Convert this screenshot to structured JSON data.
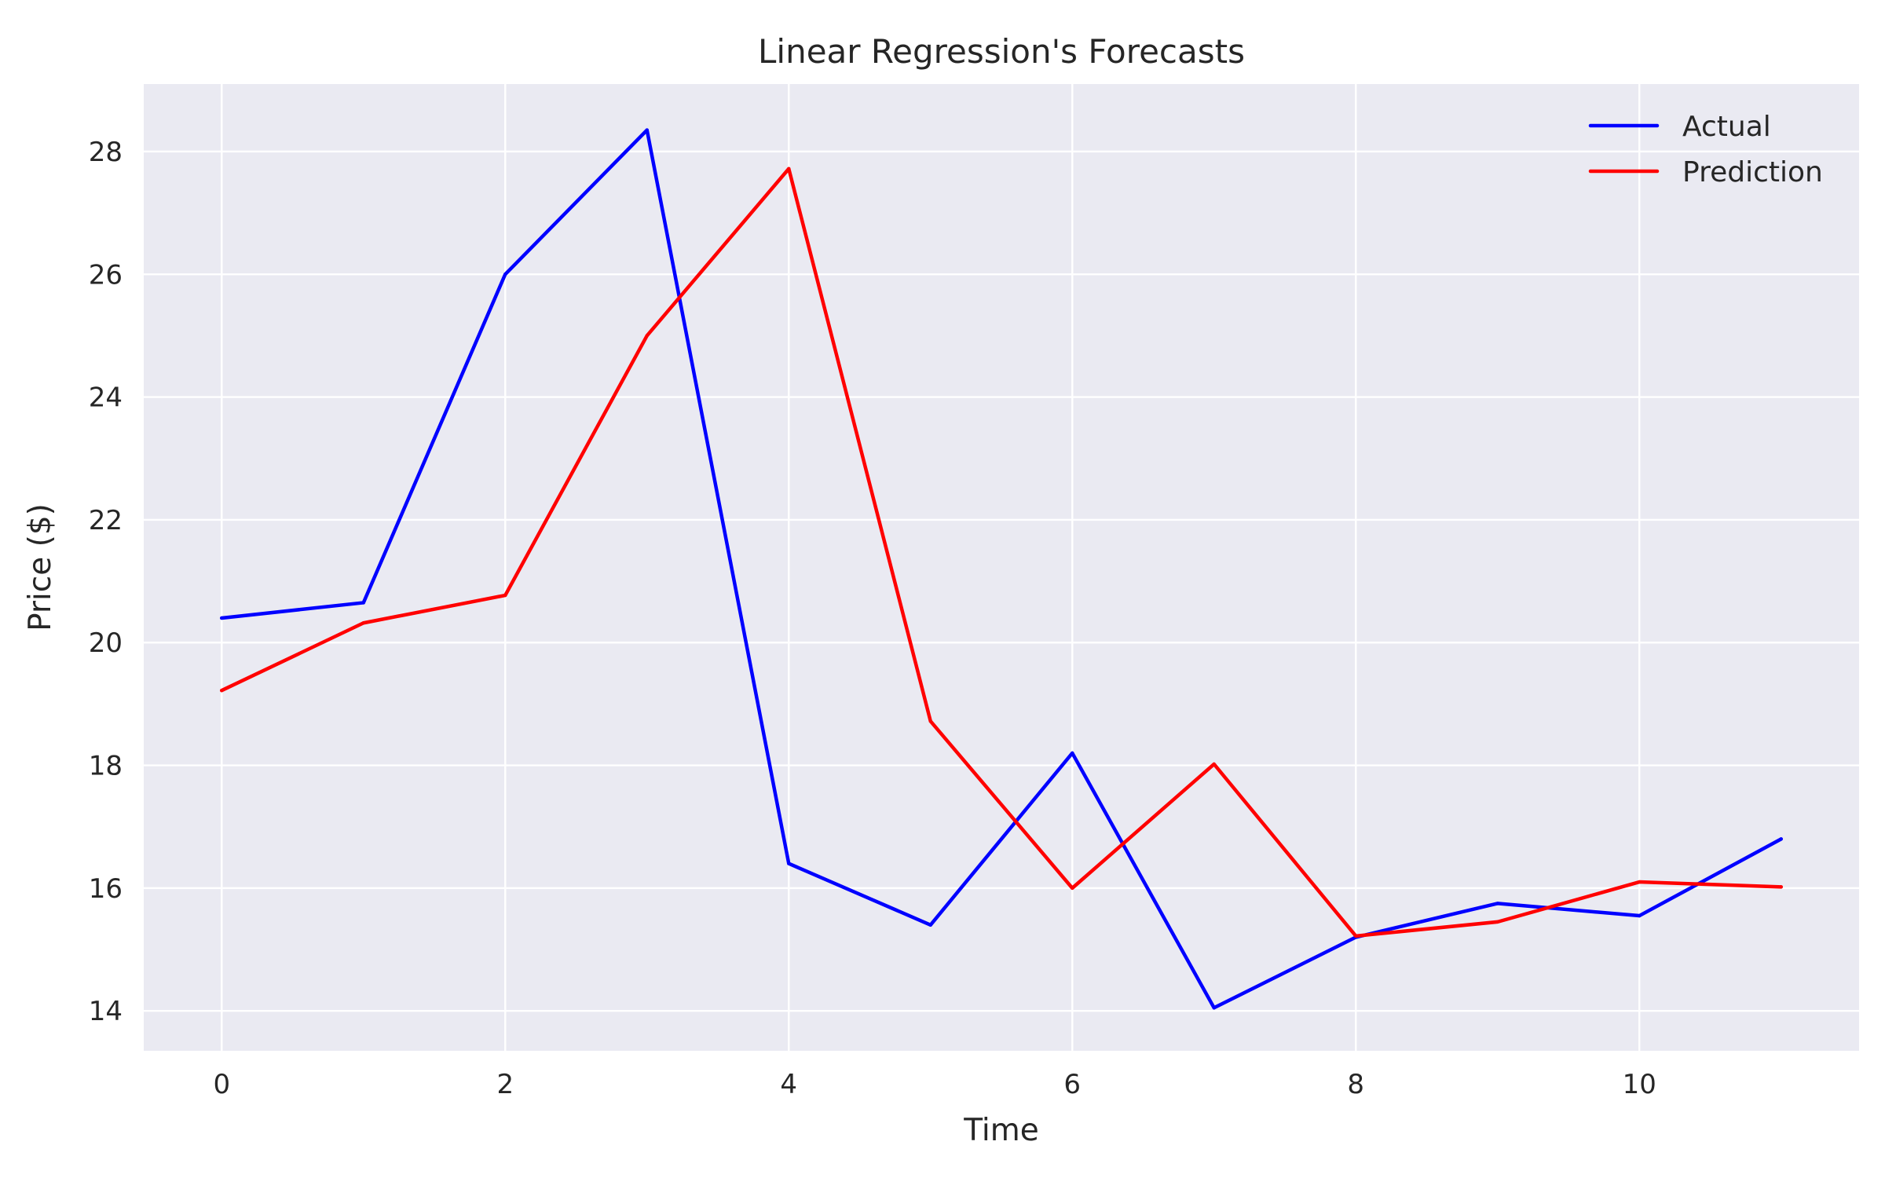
{
  "chart_data": {
    "type": "line",
    "title": "Linear Regression's Forecasts",
    "xlabel": "Time",
    "ylabel": "Price ($)",
    "x": [
      0,
      1,
      2,
      3,
      4,
      5,
      6,
      7,
      8,
      9,
      10,
      11
    ],
    "xlim": [
      -0.55,
      11.55
    ],
    "ylim": [
      13.35,
      29.1
    ],
    "xticks": [
      0,
      2,
      4,
      6,
      8,
      10
    ],
    "yticks": [
      14,
      16,
      18,
      20,
      22,
      24,
      26,
      28
    ],
    "grid": true,
    "legend_position": "top-right",
    "background_color": "#EAEAF2",
    "grid_color": "#FFFFFF",
    "series": [
      {
        "name": "Actual",
        "color": "#0000FF",
        "values": [
          20.4,
          20.65,
          26.0,
          28.35,
          16.4,
          15.4,
          18.2,
          14.05,
          15.2,
          15.75,
          15.55,
          16.8
        ]
      },
      {
        "name": "Prediction",
        "color": "#FF0000",
        "values": [
          19.22,
          20.32,
          20.77,
          25.0,
          27.72,
          18.72,
          16.0,
          18.02,
          15.22,
          15.45,
          16.1,
          16.02
        ]
      }
    ]
  }
}
